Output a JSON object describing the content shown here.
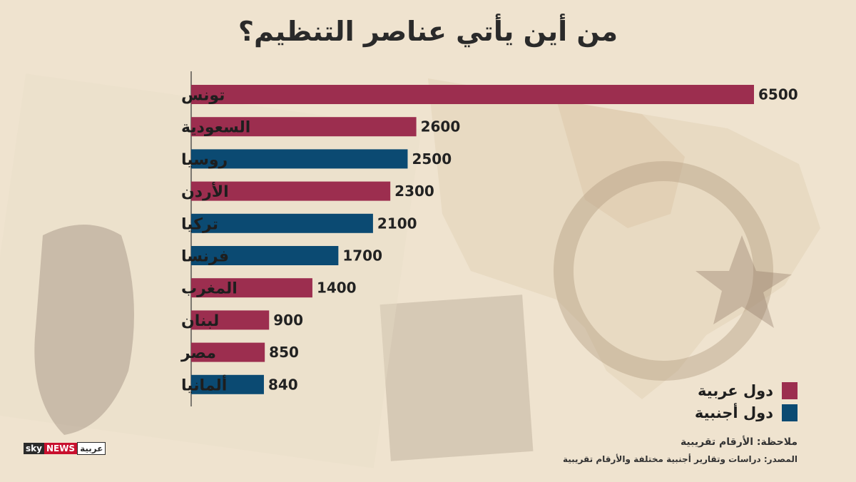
{
  "title": "من أين يأتي عناصر التنظيم؟",
  "colors": {
    "arab": "#9c2e4f",
    "foreign": "#0b4a72",
    "background": "#efe3cf"
  },
  "legend": [
    {
      "label": "دول عربية",
      "color": "#9c2e4f"
    },
    {
      "label": "دول أجنبية",
      "color": "#0b4a72"
    }
  ],
  "note": "ملاحظة: الأرقام تقريبية",
  "source": "المصدر: دراسات وتقارير أجنبية مختلفة والأرقام تقريبية",
  "logo": {
    "sky": "sky",
    "news": "NEWS",
    "ar": "عربية"
  },
  "chart_data": {
    "type": "bar",
    "orientation": "horizontal",
    "categories": [
      "تونس",
      "السعودية",
      "روسيا",
      "الأردن",
      "تركيا",
      "فرنسا",
      "المغرب",
      "لبنان",
      "مصر",
      "ألمانيا"
    ],
    "values": [
      6500,
      2600,
      2500,
      2300,
      2100,
      1700,
      1400,
      900,
      850,
      840
    ],
    "groups": [
      "arab",
      "arab",
      "foreign",
      "arab",
      "foreign",
      "foreign",
      "arab",
      "arab",
      "arab",
      "foreign"
    ],
    "xlim": [
      0,
      6500
    ],
    "grid": false,
    "legend_position": "bottom-right"
  }
}
